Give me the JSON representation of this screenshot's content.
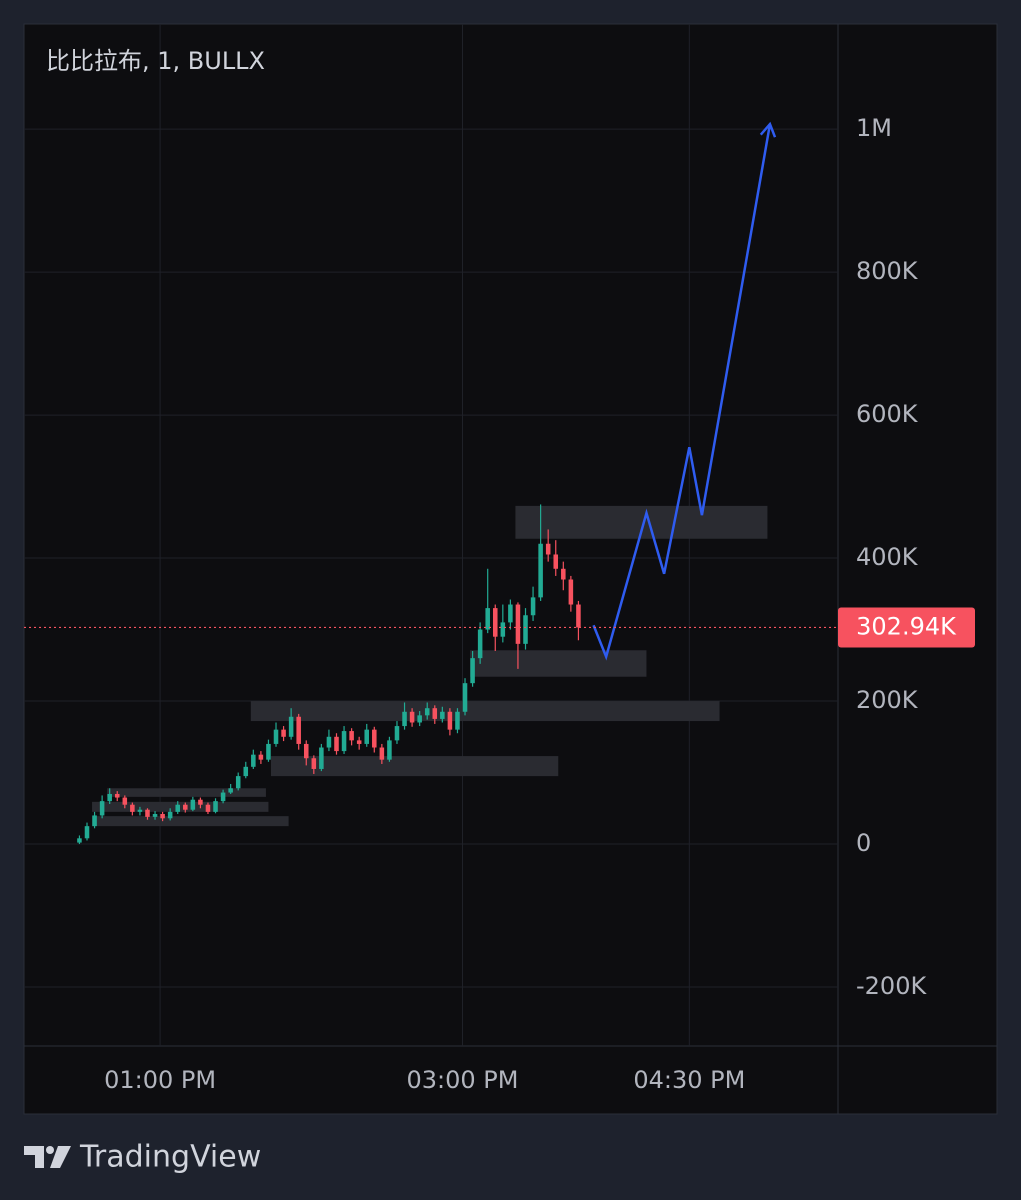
{
  "chart_data": {
    "type": "candlestick",
    "title": "比比拉布, 1, BULLX",
    "watermark": "TradingView",
    "up_color": "#22ab94",
    "down_color": "#f7525f",
    "grid": true,
    "candles": {
      "x": [
        748,
        751,
        754,
        757,
        760,
        763,
        766,
        769,
        772,
        775,
        778,
        781,
        784,
        787,
        790,
        793,
        796,
        799,
        802,
        805,
        808,
        811,
        814,
        817,
        820,
        823,
        826,
        829,
        832,
        835,
        838,
        841,
        844,
        847,
        850,
        853,
        856,
        859,
        862,
        865,
        868,
        871,
        874,
        877,
        880,
        883,
        886,
        889,
        892,
        895,
        898,
        901,
        904,
        907,
        910,
        913,
        916,
        919,
        922,
        925,
        928,
        931,
        934,
        937,
        940,
        943,
        946
      ],
      "open": [
        2000,
        8000,
        25000,
        40000,
        60000,
        70000,
        65000,
        55000,
        45000,
        48000,
        38000,
        42000,
        36000,
        45000,
        55000,
        48000,
        62000,
        55000,
        45000,
        60000,
        72000,
        78000,
        95000,
        108000,
        125000,
        118000,
        140000,
        160000,
        150000,
        178000,
        140000,
        120000,
        105000,
        135000,
        150000,
        130000,
        158000,
        145000,
        140000,
        160000,
        135000,
        118000,
        145000,
        165000,
        185000,
        170000,
        180000,
        190000,
        175000,
        185000,
        160000,
        185000,
        225000,
        260000,
        300000,
        330000,
        290000,
        310000,
        335000,
        280000,
        320000,
        345000,
        420000,
        405000,
        385000,
        370000,
        335000
      ],
      "high": [
        12000,
        30000,
        45000,
        68000,
        78000,
        74000,
        68000,
        58000,
        52000,
        50000,
        46000,
        45000,
        50000,
        60000,
        58000,
        66000,
        65000,
        58000,
        64000,
        76000,
        84000,
        100000,
        115000,
        132000,
        130000,
        146000,
        170000,
        165000,
        190000,
        182000,
        145000,
        124000,
        140000,
        160000,
        155000,
        165000,
        162000,
        150000,
        168000,
        164000,
        140000,
        150000,
        172000,
        198000,
        190000,
        186000,
        198000,
        194000,
        192000,
        190000,
        190000,
        232000,
        270000,
        310000,
        385000,
        335000,
        335000,
        342000,
        338000,
        330000,
        360000,
        475000,
        440000,
        425000,
        395000,
        375000,
        340000
      ],
      "low": [
        0,
        5000,
        22000,
        36000,
        56000,
        60000,
        50000,
        40000,
        40000,
        34000,
        34000,
        32000,
        33000,
        42000,
        44000,
        46000,
        50000,
        42000,
        43000,
        57000,
        70000,
        75000,
        92000,
        105000,
        112000,
        115000,
        136000,
        144000,
        146000,
        132000,
        110000,
        98000,
        102000,
        130000,
        125000,
        126000,
        138000,
        132000,
        136000,
        128000,
        112000,
        115000,
        140000,
        160000,
        164000,
        165000,
        174000,
        168000,
        170000,
        152000,
        155000,
        180000,
        220000,
        252000,
        295000,
        270000,
        282000,
        300000,
        245000,
        272000,
        312000,
        340000,
        395000,
        375000,
        355000,
        325000,
        285000
      ],
      "close": [
        8000,
        25000,
        40000,
        60000,
        70000,
        65000,
        55000,
        45000,
        48000,
        38000,
        42000,
        36000,
        45000,
        55000,
        48000,
        62000,
        55000,
        45000,
        60000,
        72000,
        78000,
        95000,
        108000,
        125000,
        118000,
        140000,
        160000,
        150000,
        178000,
        140000,
        120000,
        105000,
        135000,
        150000,
        130000,
        158000,
        145000,
        140000,
        160000,
        135000,
        118000,
        145000,
        165000,
        185000,
        170000,
        180000,
        190000,
        175000,
        185000,
        160000,
        185000,
        225000,
        260000,
        300000,
        330000,
        290000,
        310000,
        335000,
        280000,
        320000,
        345000,
        420000,
        405000,
        385000,
        370000,
        335000,
        303000
      ]
    },
    "last_price": {
      "value": 302940,
      "label": "302.94K"
    },
    "zones": [
      {
        "x": [
          921,
          1021
        ],
        "y": [
          427000,
          473000
        ]
      },
      {
        "x": [
          903,
          973
        ],
        "y": [
          234000,
          271000
        ]
      },
      {
        "x": [
          816,
          1002
        ],
        "y": [
          172000,
          200000
        ]
      },
      {
        "x": [
          824,
          938
        ],
        "y": [
          95000,
          123000
        ]
      },
      {
        "x": [
          759,
          822
        ],
        "y": [
          66000,
          78000
        ]
      },
      {
        "x": [
          753,
          823
        ],
        "y": [
          45000,
          59000
        ]
      },
      {
        "x": [
          753,
          831
        ],
        "y": [
          25000,
          39000
        ]
      }
    ],
    "zone_color": "#2a2b31",
    "projection": {
      "color": "#2f5cf0",
      "x": [
        952,
        957,
        973,
        980,
        990,
        995,
        1022
      ],
      "y": [
        306000,
        262000,
        463000,
        378000,
        555000,
        460000,
        1007000
      ]
    },
    "xlim": [
      726,
      1049
    ],
    "xticks": [
      {
        "value": 780,
        "label": "01:00 PM"
      },
      {
        "value": 900,
        "label": "03:00 PM"
      },
      {
        "value": 990,
        "label": "04:30 PM"
      }
    ],
    "ylim": [
      -282500,
      1147000
    ],
    "yticks": [
      {
        "value": -200000,
        "label": "-200K"
      },
      0,
      {
        "value": 200000,
        "label": "200K"
      },
      {
        "value": 400000,
        "label": "400K"
      },
      {
        "value": 600000,
        "label": "600K"
      },
      {
        "value": 800000,
        "label": "800K"
      },
      {
        "value": 1000000,
        "label": "1M"
      }
    ]
  }
}
